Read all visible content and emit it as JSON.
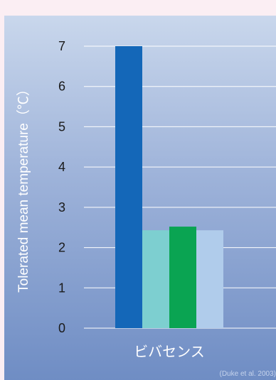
{
  "chart_data": {
    "type": "bar",
    "title": "",
    "xlabel": "",
    "ylabel": "Tolerated mean temperature（℃）",
    "ylim": [
      0,
      7
    ],
    "yticks": [
      0,
      1,
      2,
      3,
      4,
      5,
      6,
      7
    ],
    "categories": [
      "ビバセンス"
    ],
    "series": [
      {
        "values": [
          7.0
        ],
        "color": "#1467b8"
      },
      {
        "values": [
          2.43
        ],
        "color": "#7dcfd0"
      },
      {
        "values": [
          2.52
        ],
        "color": "#0aa452"
      },
      {
        "values": [
          2.43
        ],
        "color": "#b0cceb"
      }
    ],
    "grid": true,
    "legend": "none",
    "source": "(Duke et al. 2003)"
  }
}
